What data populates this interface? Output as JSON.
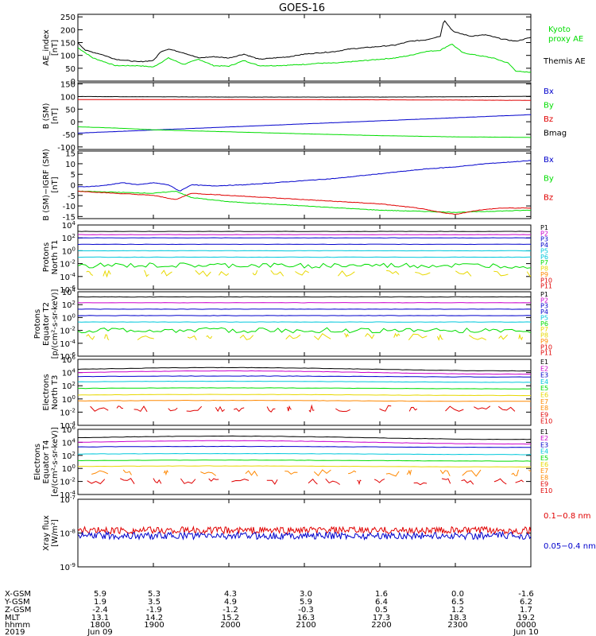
{
  "title": "GOES-16",
  "colors": {
    "black": "#000000",
    "red": "#e00000",
    "green": "#00dd00",
    "blue": "#0000cc",
    "cyan": "#00c8dc",
    "orange": "#ff8800",
    "yellow": "#e8d800",
    "magenta": "#cc00cc"
  },
  "chart_data": [
    {
      "type": "line",
      "panel": "ae",
      "ylabel_lines": [
        "AE_index",
        "[nT]"
      ],
      "yticks": [
        "0",
        "50",
        "100",
        "150",
        "200",
        "250"
      ],
      "ylim": [
        0,
        260
      ],
      "series": [
        {
          "name": "Kyoto proxy AE",
          "name_lines": [
            "Kyoto",
            "proxy AE"
          ],
          "color": "green",
          "x": [
            18.0,
            18.2,
            18.5,
            18.8,
            19.0,
            19.2,
            19.4,
            19.6,
            19.8,
            20.0,
            20.2,
            20.4,
            20.6,
            20.8,
            21.0,
            21.2,
            21.4,
            21.6,
            21.8,
            22.0,
            22.2,
            22.4,
            22.6,
            22.8,
            22.95,
            23.1,
            23.3,
            23.5,
            23.7,
            23.8,
            23.9,
            24.0
          ],
          "values": [
            130,
            90,
            60,
            60,
            55,
            90,
            65,
            85,
            60,
            58,
            80,
            60,
            60,
            62,
            65,
            70,
            70,
            75,
            80,
            85,
            90,
            100,
            115,
            120,
            145,
            110,
            100,
            90,
            70,
            40,
            35,
            35
          ]
        },
        {
          "name": "Themis AE",
          "name_lines": [
            "Themis AE"
          ],
          "color": "black",
          "x": [
            18.0,
            18.1,
            18.3,
            18.5,
            18.8,
            19.0,
            19.1,
            19.2,
            19.4,
            19.6,
            19.8,
            20.0,
            20.2,
            20.4,
            20.6,
            20.8,
            21.0,
            21.2,
            21.4,
            21.6,
            21.8,
            22.0,
            22.2,
            22.4,
            22.6,
            22.8,
            22.85,
            22.9,
            22.95,
            23.0,
            23.2,
            23.4,
            23.6,
            23.8,
            24.0
          ],
          "values": [
            150,
            120,
            105,
            85,
            75,
            80,
            115,
            125,
            110,
            90,
            95,
            90,
            105,
            85,
            90,
            95,
            105,
            110,
            115,
            125,
            130,
            135,
            140,
            155,
            160,
            175,
            240,
            220,
            200,
            190,
            175,
            180,
            165,
            155,
            170
          ]
        }
      ]
    },
    {
      "type": "line",
      "panel": "bsm",
      "ylabel_lines": [
        "B (SM)",
        "[nT]"
      ],
      "yticks": [
        "-100",
        "-50",
        "0",
        "50",
        "100",
        "150"
      ],
      "ylim": [
        -110,
        155
      ],
      "series": [
        {
          "name": "Bx",
          "color": "blue",
          "x": [
            18,
            24
          ],
          "values": [
            -45,
            28
          ]
        },
        {
          "name": "By",
          "color": "green",
          "x": [
            18,
            18.5,
            19,
            20,
            21,
            22,
            23,
            24
          ],
          "values": [
            -20,
            -25,
            -32,
            -40,
            -48,
            -55,
            -60,
            -62
          ]
        },
        {
          "name": "Bz",
          "color": "red",
          "x": [
            18,
            19,
            20,
            21,
            22,
            23,
            24
          ],
          "values": [
            88,
            88,
            88,
            88,
            87,
            86,
            85
          ]
        },
        {
          "name": "Bmag",
          "color": "black",
          "x": [
            18,
            19,
            20,
            21,
            22,
            23,
            24
          ],
          "values": [
            100,
            99,
            98,
            98,
            98,
            99,
            101
          ]
        }
      ]
    },
    {
      "type": "line",
      "panel": "bigrf",
      "ylabel_lines": [
        "B (SM)−IGRF (SM)",
        "[nT]"
      ],
      "yticks": [
        "-15",
        "-10",
        "-5",
        "0",
        "5",
        "10",
        "15"
      ],
      "ylim": [
        -16,
        16
      ],
      "series": [
        {
          "name": "Bx",
          "color": "blue",
          "x": [
            18,
            18.3,
            18.6,
            18.8,
            19.0,
            19.2,
            19.35,
            19.5,
            19.8,
            20.2,
            20.6,
            21.0,
            21.4,
            21.8,
            22.2,
            22.6,
            23.0,
            23.4,
            23.8,
            24.0
          ],
          "values": [
            -1,
            -0.5,
            1,
            0,
            1,
            0,
            -3,
            0,
            -0.5,
            0,
            1,
            2,
            3,
            4.5,
            6,
            7.5,
            8.5,
            10,
            11,
            11.5
          ]
        },
        {
          "name": "By",
          "color": "green",
          "x": [
            18,
            18.5,
            19,
            19.3,
            19.5,
            20,
            20.5,
            21,
            21.5,
            22,
            22.5,
            23,
            23.5,
            24
          ],
          "values": [
            -3,
            -3.5,
            -4,
            -3,
            -6,
            -8,
            -9,
            -10,
            -11,
            -12,
            -12.5,
            -13,
            -12.5,
            -12
          ]
        },
        {
          "name": "Bz",
          "color": "red",
          "x": [
            18,
            18.5,
            19,
            19.3,
            19.5,
            20,
            20.5,
            21,
            21.5,
            22,
            22.5,
            22.8,
            23.0,
            23.3,
            23.6,
            24
          ],
          "values": [
            -3,
            -4,
            -5,
            -7,
            -4,
            -5,
            -6,
            -7,
            -8,
            -9,
            -11,
            -13,
            -14,
            -12,
            -11,
            -11
          ]
        }
      ]
    },
    {
      "type": "line",
      "panel": "protons-t1",
      "ylabel_lines": [
        "Protons",
        "North T1"
      ],
      "yticks": [
        "10^-6",
        "10^-4",
        "10^-2",
        "10^0",
        "10^2",
        "10^4"
      ],
      "ylim_log10": [
        -6,
        4
      ],
      "series": [
        {
          "name": "P1",
          "color": "black",
          "log10_level": 3.0
        },
        {
          "name": "P2",
          "color": "magenta",
          "log10_level": 2.5
        },
        {
          "name": "P3",
          "color": "blue",
          "log10_level": 2.0
        },
        {
          "name": "P4",
          "color": "blue",
          "log10_level": 1.0
        },
        {
          "name": "P5",
          "color": "cyan",
          "log10_level": 0.0
        },
        {
          "name": "P6",
          "color": "cyan",
          "log10_level": -1.0
        },
        {
          "name": "P7",
          "color": "green",
          "log10_level": -2.3
        },
        {
          "name": "P8",
          "color": "yellow",
          "log10_level": -3.5
        },
        {
          "name": "P9",
          "color": "orange"
        },
        {
          "name": "P10",
          "color": "red"
        },
        {
          "name": "P11",
          "color": "red"
        }
      ]
    },
    {
      "type": "line",
      "panel": "protons-t2",
      "ylabel_lines": [
        "Protons",
        "Equator T2",
        "[p/(cm²-s-sr-keV)]"
      ],
      "yticks": [
        "10^-6",
        "10^-4",
        "10^-2",
        "10^0",
        "10^2",
        "10^4"
      ],
      "ylim_log10": [
        -6,
        4
      ],
      "series": [
        {
          "name": "P1",
          "color": "black",
          "log10_level": 3.2
        },
        {
          "name": "P2",
          "color": "magenta",
          "log10_level": 2.3
        },
        {
          "name": "P3",
          "color": "blue",
          "log10_level": 1.3
        },
        {
          "name": "P4",
          "color": "blue",
          "log10_level": 0.3
        },
        {
          "name": "P5",
          "color": "cyan",
          "log10_level": -0.7
        },
        {
          "name": "P6",
          "color": "green",
          "log10_level": -2.0
        },
        {
          "name": "P7",
          "color": "yellow",
          "log10_level": -3.0
        },
        {
          "name": "P8",
          "color": "yellow"
        },
        {
          "name": "P9",
          "color": "orange"
        },
        {
          "name": "P10",
          "color": "red"
        },
        {
          "name": "P11",
          "color": "red"
        }
      ]
    },
    {
      "type": "line",
      "panel": "electrons-t3",
      "ylabel_lines": [
        "Electrons",
        "North T3"
      ],
      "yticks": [
        "10^-4",
        "10^-2",
        "10^0",
        "10^2",
        "10^4",
        "10^6"
      ],
      "ylim_log10": [
        -4,
        6
      ],
      "series": [
        {
          "name": "E1",
          "color": "black",
          "log10_level": 4.5
        },
        {
          "name": "E2",
          "color": "magenta",
          "log10_level": 4.0
        },
        {
          "name": "E3",
          "color": "blue",
          "log10_level": 3.4
        },
        {
          "name": "E4",
          "color": "cyan",
          "log10_level": 2.6
        },
        {
          "name": "E5",
          "color": "green",
          "log10_level": 1.6
        },
        {
          "name": "E6",
          "color": "yellow",
          "log10_level": 0.6
        },
        {
          "name": "E7",
          "color": "orange",
          "log10_level": -0.3
        },
        {
          "name": "E8",
          "color": "orange"
        },
        {
          "name": "E9",
          "color": "red",
          "log10_level": -1.5
        },
        {
          "name": "E10",
          "color": "red"
        }
      ]
    },
    {
      "type": "line",
      "panel": "electrons-t4",
      "ylabel_lines": [
        "Electrons",
        "Equator T4",
        "[e/(cm²-s-sr-keV)]"
      ],
      "yticks": [
        "10^-4",
        "10^-2",
        "10^0",
        "10^2",
        "10^4",
        "10^6"
      ],
      "ylim_log10": [
        -4,
        6
      ],
      "series": [
        {
          "name": "E1",
          "color": "black",
          "log10_level": 4.7
        },
        {
          "name": "E2",
          "color": "magenta",
          "log10_level": 4.0
        },
        {
          "name": "E3",
          "color": "blue",
          "log10_level": 3.3
        },
        {
          "name": "E4",
          "color": "cyan",
          "log10_level": 2.2
        },
        {
          "name": "E5",
          "color": "green",
          "log10_level": 1.2
        },
        {
          "name": "E6",
          "color": "yellow",
          "log10_level": 0.3
        },
        {
          "name": "E7",
          "color": "orange",
          "log10_level": -0.7
        },
        {
          "name": "E8",
          "color": "orange"
        },
        {
          "name": "E9",
          "color": "red",
          "log10_level": -2.0
        },
        {
          "name": "E10",
          "color": "red"
        }
      ]
    },
    {
      "type": "line",
      "panel": "xray",
      "ylabel_lines": [
        "Xray flux",
        "[W/m²]"
      ],
      "yticks": [
        "10^-9",
        "10^-8",
        "10^-7"
      ],
      "ylim_log10": [
        -9,
        -7
      ],
      "series": [
        {
          "name": "0.1−0.8 nm",
          "color": "red",
          "log10_level": -7.92
        },
        {
          "name": "0.05−0.4 nm",
          "color": "blue",
          "log10_level": -8.08
        }
      ]
    }
  ],
  "footer": {
    "rows": [
      {
        "label": "X-GSM",
        "values": [
          "5.9",
          "5.3",
          "4.3",
          "3.0",
          "1.6",
          "0.0",
          "-1.6"
        ]
      },
      {
        "label": "Y-GSM",
        "values": [
          "1.9",
          "3.5",
          "4.9",
          "5.9",
          "6.4",
          "6.5",
          "6.2"
        ]
      },
      {
        "label": "Z-GSM",
        "values": [
          "-2.4",
          "-1.9",
          "-1.2",
          "-0.3",
          "0.5",
          "1.2",
          "1.7"
        ]
      },
      {
        "label": "MLT",
        "values": [
          "13.1",
          "14.2",
          "15.2",
          "16.3",
          "17.3",
          "18.3",
          "19.2"
        ]
      },
      {
        "label": "hhmm",
        "values": [
          "1800",
          "1900",
          "2000",
          "2100",
          "2200",
          "2300",
          "0000"
        ]
      },
      {
        "label": "2019",
        "values": [
          "Jun 09",
          "",
          "",
          "",
          "",
          "",
          "Jun 10"
        ]
      }
    ]
  }
}
